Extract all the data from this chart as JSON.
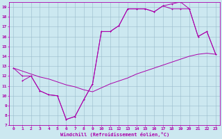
{
  "xlabel": "Windchill (Refroidissement éolien,°C)",
  "background_color": "#cce8f0",
  "line_color": "#aa00aa",
  "grid_color": "#99bbcc",
  "xlim": [
    -0.5,
    23.5
  ],
  "ylim": [
    7,
    19.5
  ],
  "xticks": [
    0,
    1,
    2,
    3,
    4,
    5,
    6,
    7,
    8,
    9,
    10,
    11,
    12,
    13,
    14,
    15,
    16,
    17,
    18,
    19,
    20,
    21,
    22,
    23
  ],
  "yticks": [
    7,
    8,
    9,
    10,
    11,
    12,
    13,
    14,
    15,
    16,
    17,
    18,
    19
  ],
  "line1_x": [
    0,
    1,
    2,
    3,
    4,
    5,
    6,
    7,
    8,
    9,
    10,
    11,
    12,
    13,
    14,
    15,
    16,
    17,
    18,
    19,
    20,
    21,
    22,
    23
  ],
  "line1_y": [
    12.8,
    12.0,
    12.0,
    10.5,
    10.1,
    10.0,
    7.6,
    7.9,
    9.6,
    11.2,
    16.5,
    16.5,
    17.1,
    18.8,
    18.8,
    18.8,
    18.5,
    19.1,
    19.3,
    19.5,
    18.8,
    16.0,
    16.5,
    14.2
  ],
  "line2_x": [
    0,
    1,
    2,
    3,
    4,
    5,
    6,
    7,
    8,
    9,
    10,
    11,
    12,
    13,
    14,
    15,
    16,
    17,
    18,
    19,
    20,
    21,
    22,
    23
  ],
  "line2_y": [
    12.8,
    12.5,
    12.2,
    11.9,
    11.7,
    11.4,
    11.1,
    10.9,
    10.6,
    10.4,
    10.8,
    11.2,
    11.5,
    11.8,
    12.2,
    12.5,
    12.8,
    13.1,
    13.4,
    13.7,
    14.0,
    14.2,
    14.3,
    14.2
  ],
  "line3_x": [
    1,
    2,
    3,
    4,
    5,
    6,
    7,
    8,
    9,
    10,
    11,
    12,
    13,
    14,
    15,
    16,
    17,
    18,
    19,
    20,
    21,
    22,
    23
  ],
  "line3_y": [
    11.5,
    12.0,
    10.5,
    10.1,
    10.0,
    7.6,
    7.9,
    9.6,
    11.2,
    16.5,
    16.5,
    17.1,
    18.8,
    18.8,
    18.8,
    18.5,
    19.1,
    18.8,
    18.8,
    18.8,
    16.0,
    16.5,
    14.2
  ]
}
